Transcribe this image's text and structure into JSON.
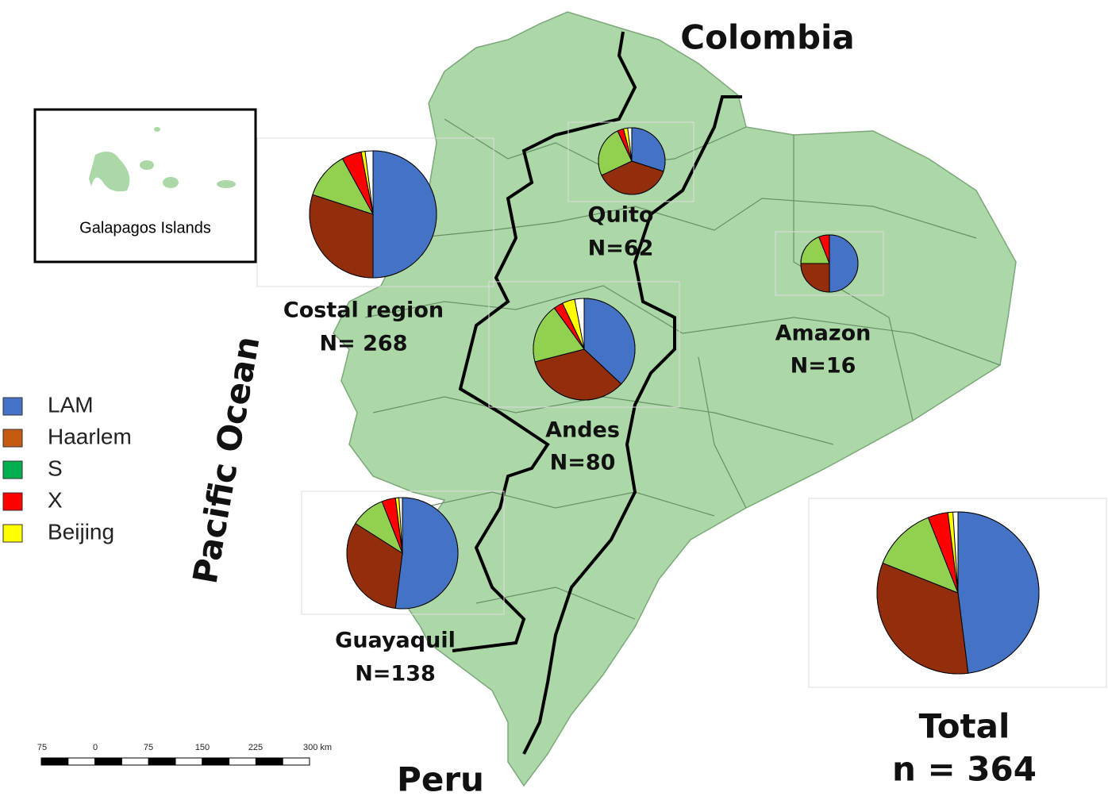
{
  "map": {
    "countries": {
      "north": "Colombia",
      "south": "Peru"
    },
    "ocean": "Pacific Ocean",
    "inset": "Galapagos Islands",
    "legend": [
      {
        "name": "LAM",
        "color": "#4472c4",
        "pie_color": "#4472c4"
      },
      {
        "name": "Haarlem",
        "color": "#c55a11",
        "pie_color": "#922e0b"
      },
      {
        "name": "S",
        "color": "#00b050",
        "pie_color": "#92d050"
      },
      {
        "name": "X",
        "color": "#ff0000",
        "pie_color": "#ff0000"
      },
      {
        "name": "Beijing",
        "color": "#ffff00",
        "pie_color": "#ffff00"
      }
    ],
    "regions": [
      {
        "name": "Costal region",
        "n_label": "N= 268",
        "values": [
          50,
          30,
          12,
          5,
          1
        ]
      },
      {
        "name": "Quito",
        "n_label": "N=62",
        "values": [
          30,
          38,
          25,
          3,
          2
        ]
      },
      {
        "name": "Andes",
        "n_label": "N=80",
        "values": [
          37,
          34,
          19,
          3,
          4
        ]
      },
      {
        "name": "Amazon",
        "n_label": "N=16",
        "values": [
          50,
          25,
          19,
          6
        ]
      },
      {
        "name": "Guayaquil",
        "n_label": "N=138",
        "values": [
          52,
          32,
          10,
          4,
          1
        ]
      }
    ],
    "total": {
      "name": "Total",
      "n_label": "n = 364",
      "values": [
        48,
        33,
        13,
        4,
        1
      ]
    },
    "scale_bar": {
      "ticks": [
        "75",
        "0",
        "75",
        "150",
        "225",
        "300 km"
      ]
    }
  }
}
